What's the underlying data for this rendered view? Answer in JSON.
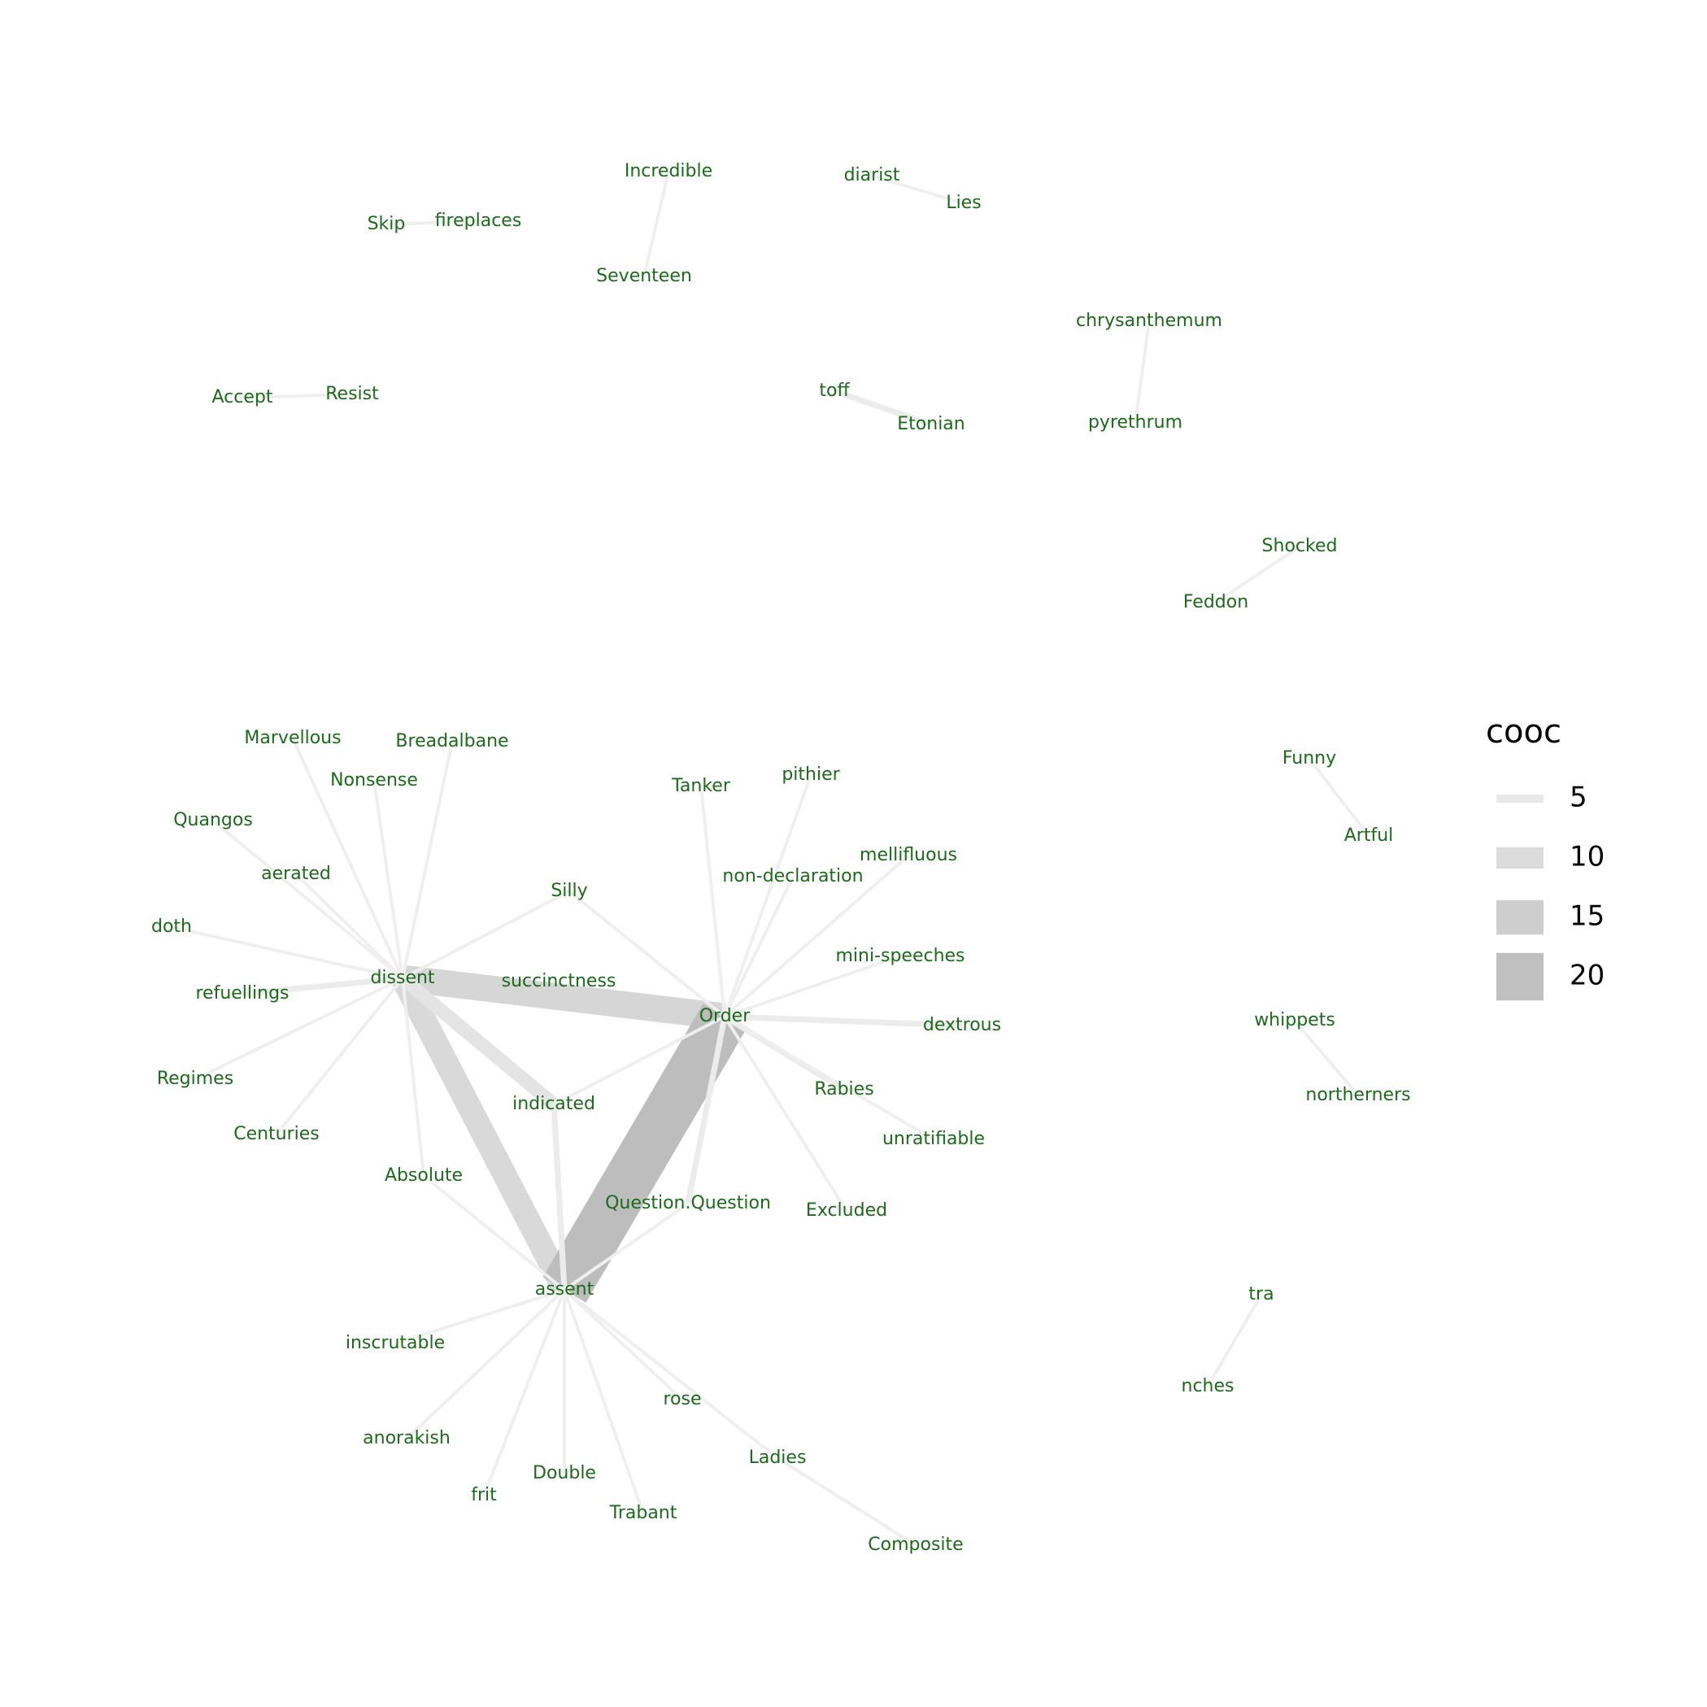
{
  "colors": {
    "label": "#1b6b1b",
    "edge_light": "#efefef",
    "edge_dark": "#bdbdbd",
    "legend_text": "#000000"
  },
  "legend": {
    "title": "cooc",
    "entries": [
      {
        "label": "5",
        "value": 5
      },
      {
        "label": "10",
        "value": 10
      },
      {
        "label": "15",
        "value": 15
      },
      {
        "label": "20",
        "value": 20
      }
    ]
  },
  "nodes": [
    "Incredible",
    "diarist",
    "Lies",
    "Skip",
    "fireplaces",
    "Seventeen",
    "chrysanthemum",
    "pyrethrum",
    "toff",
    "Etonian",
    "Accept",
    "Resist",
    "Shocked",
    "Feddon",
    "Funny",
    "Artful",
    "Marvellous",
    "Breadalbane",
    "Nonsense",
    "Quangos",
    "aerated",
    "doth",
    "refuellings",
    "Regimes",
    "Centuries",
    "dissent",
    "succinctness",
    "Silly",
    "Tanker",
    "pithier",
    "mellifluous",
    "non-declaration",
    "mini-speeches",
    "Order",
    "dextrous",
    "indicated",
    "Rabies",
    "unratifiable",
    "Absolute",
    "Question.Question",
    "Excluded",
    "assent",
    "inscrutable",
    "rose",
    "anorakish",
    "Ladies",
    "Double",
    "frit",
    "Trabant",
    "Composite",
    "whippets",
    "northerners",
    "tra",
    "nches"
  ],
  "edges": [
    {
      "from": "Incredible",
      "to": "Seventeen",
      "cooc": 3
    },
    {
      "from": "diarist",
      "to": "Lies",
      "cooc": 3
    },
    {
      "from": "Skip",
      "to": "fireplaces",
      "cooc": 3
    },
    {
      "from": "chrysanthemum",
      "to": "pyrethrum",
      "cooc": 3
    },
    {
      "from": "toff",
      "to": "Etonian",
      "cooc": 4
    },
    {
      "from": "Accept",
      "to": "Resist",
      "cooc": 3
    },
    {
      "from": "Shocked",
      "to": "Feddon",
      "cooc": 3
    },
    {
      "from": "Funny",
      "to": "Artful",
      "cooc": 3
    },
    {
      "from": "whippets",
      "to": "northerners",
      "cooc": 3
    },
    {
      "from": "tra",
      "to": "nches",
      "cooc": 3
    },
    {
      "from": "dissent",
      "to": "Order",
      "cooc": 12
    },
    {
      "from": "dissent",
      "to": "assent",
      "cooc": 11
    },
    {
      "from": "Order",
      "to": "assent",
      "cooc": 21
    },
    {
      "from": "dissent",
      "to": "indicated",
      "cooc": 7
    },
    {
      "from": "dissent",
      "to": "Marvellous",
      "cooc": 3
    },
    {
      "from": "dissent",
      "to": "Breadalbane",
      "cooc": 3
    },
    {
      "from": "dissent",
      "to": "Nonsense",
      "cooc": 3
    },
    {
      "from": "dissent",
      "to": "Quangos",
      "cooc": 3
    },
    {
      "from": "dissent",
      "to": "aerated",
      "cooc": 3
    },
    {
      "from": "dissent",
      "to": "doth",
      "cooc": 3
    },
    {
      "from": "dissent",
      "to": "refuellings",
      "cooc": 4
    },
    {
      "from": "dissent",
      "to": "Regimes",
      "cooc": 3
    },
    {
      "from": "dissent",
      "to": "Centuries",
      "cooc": 3
    },
    {
      "from": "dissent",
      "to": "Silly",
      "cooc": 3
    },
    {
      "from": "dissent",
      "to": "Absolute",
      "cooc": 3
    },
    {
      "from": "Order",
      "to": "Silly",
      "cooc": 3
    },
    {
      "from": "Order",
      "to": "Tanker",
      "cooc": 3
    },
    {
      "from": "Order",
      "to": "pithier",
      "cooc": 3
    },
    {
      "from": "Order",
      "to": "mellifluous",
      "cooc": 3
    },
    {
      "from": "Order",
      "to": "non-declaration",
      "cooc": 3
    },
    {
      "from": "Order",
      "to": "mini-speeches",
      "cooc": 3
    },
    {
      "from": "Order",
      "to": "dextrous",
      "cooc": 4
    },
    {
      "from": "Order",
      "to": "Rabies",
      "cooc": 4
    },
    {
      "from": "Order",
      "to": "unratifiable",
      "cooc": 3
    },
    {
      "from": "Order",
      "to": "Excluded",
      "cooc": 3
    },
    {
      "from": "Order",
      "to": "indicated",
      "cooc": 3
    },
    {
      "from": "Order",
      "to": "Question.Question",
      "cooc": 4
    },
    {
      "from": "assent",
      "to": "indicated",
      "cooc": 4
    },
    {
      "from": "assent",
      "to": "Absolute",
      "cooc": 3
    },
    {
      "from": "assent",
      "to": "Question.Question",
      "cooc": 3
    },
    {
      "from": "assent",
      "to": "inscrutable",
      "cooc": 3
    },
    {
      "from": "assent",
      "to": "anorakish",
      "cooc": 3
    },
    {
      "from": "assent",
      "to": "frit",
      "cooc": 3
    },
    {
      "from": "assent",
      "to": "Double",
      "cooc": 3
    },
    {
      "from": "assent",
      "to": "Trabant",
      "cooc": 3
    },
    {
      "from": "assent",
      "to": "rose",
      "cooc": 3
    },
    {
      "from": "assent",
      "to": "Ladies",
      "cooc": 3
    },
    {
      "from": "Ladies",
      "to": "Composite",
      "cooc": 3
    }
  ]
}
